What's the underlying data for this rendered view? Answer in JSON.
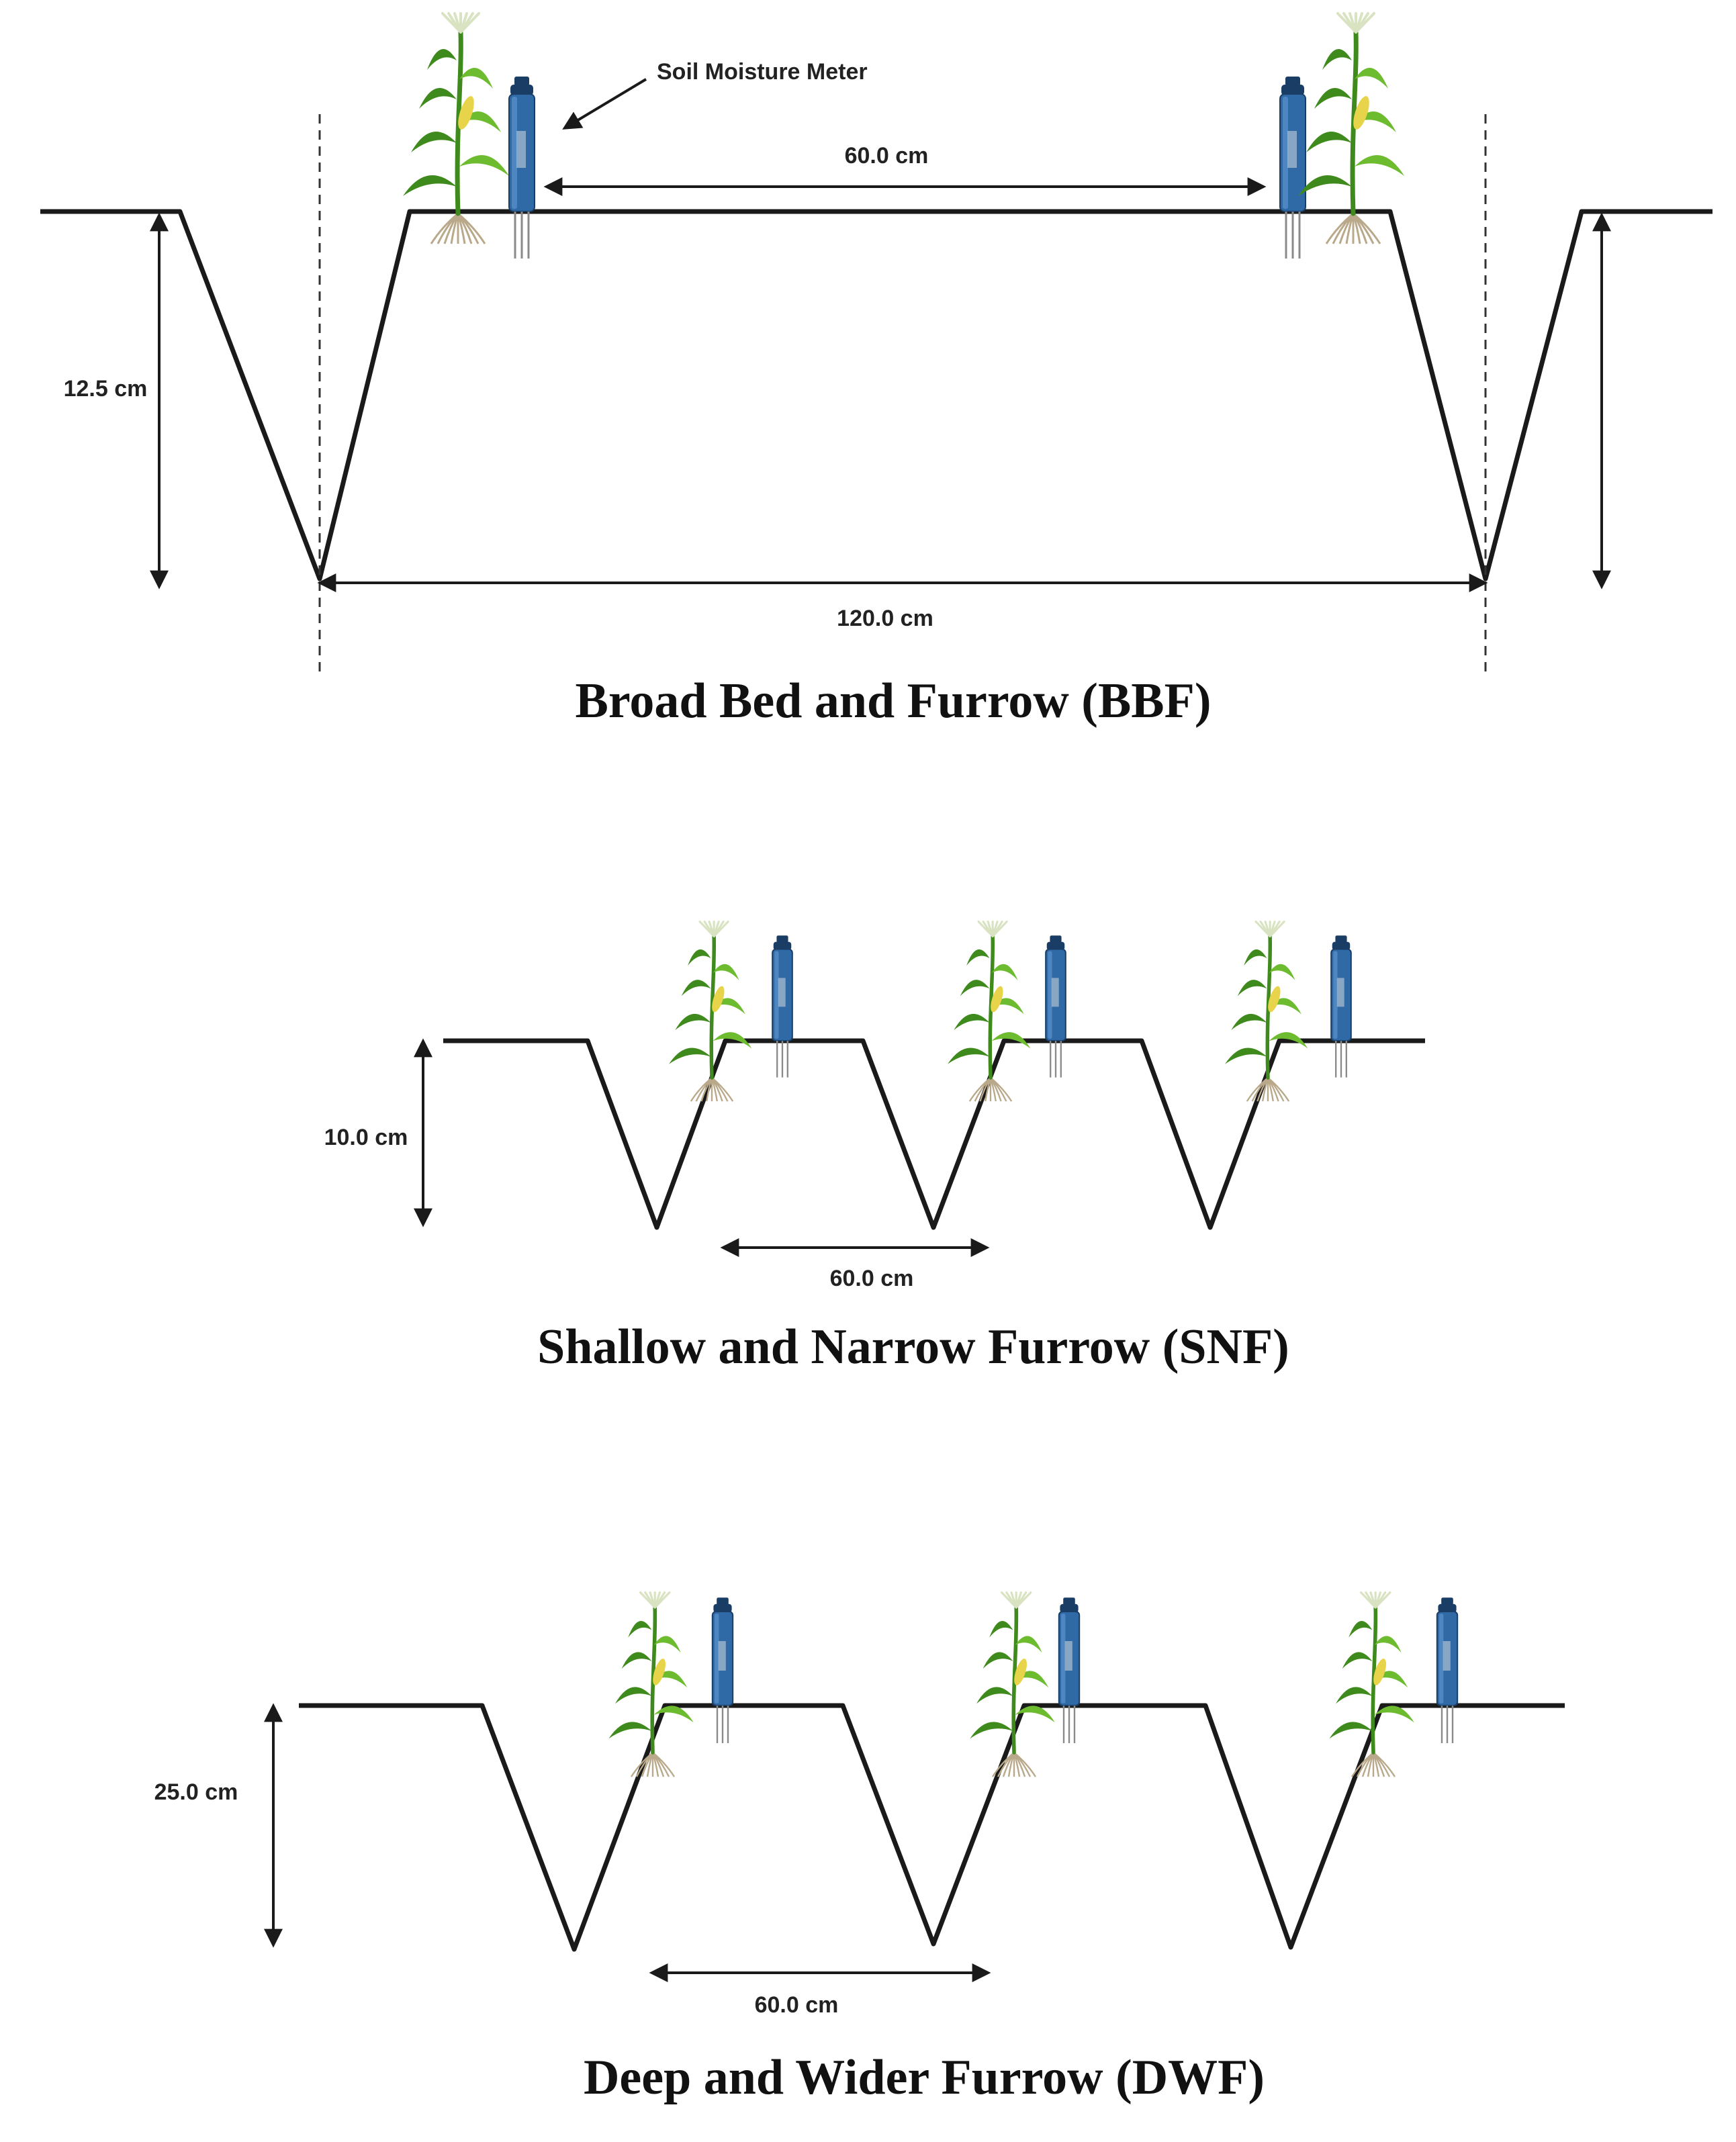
{
  "colors": {
    "line": "#1a1a1a",
    "meter_body": "#2f6aa6",
    "meter_dark": "#1a3d66",
    "leaf": "#6dbb2e",
    "leaf_dark": "#3f8a1c",
    "cob": "#e8d44a",
    "root": "#b9a98a"
  },
  "icons": [
    "soil-moisture-meter-icon",
    "crop-plant-icon"
  ],
  "bbf": {
    "callout_label": "Soil Moisture Meter",
    "top_width": "60.0 cm",
    "depth": "12.5 cm",
    "bottom_width": "120.0 cm",
    "title": "Broad Bed and Furrow (BBF)"
  },
  "snf": {
    "depth": "10.0 cm",
    "spacing": "60.0 cm",
    "title": "Shallow and Narrow Furrow (SNF)"
  },
  "dwf": {
    "depth": "25.0 cm",
    "spacing": "60.0 cm",
    "title": "Deep and Wider Furrow (DWF)"
  }
}
